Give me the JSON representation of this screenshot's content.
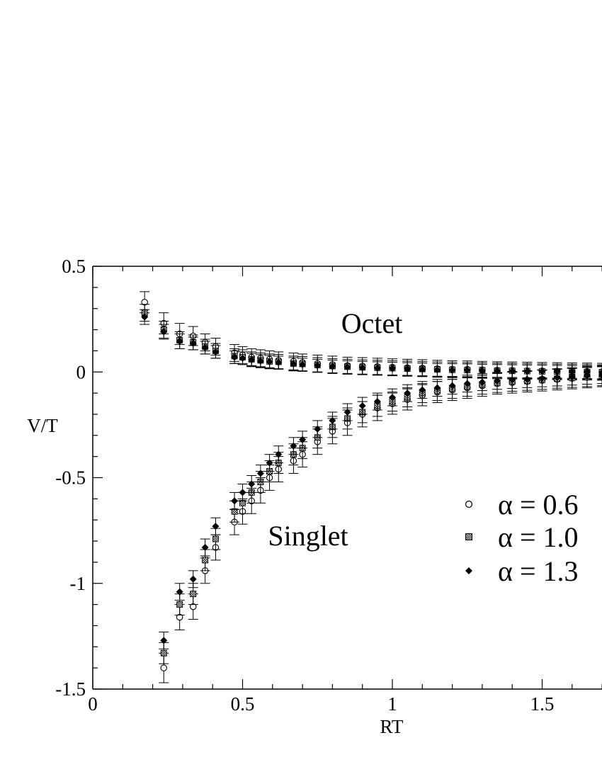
{
  "chart_data": {
    "type": "scatter",
    "title": "",
    "xlabel": "RT",
    "ylabel": "V/T",
    "xlim": [
      0,
      1.7
    ],
    "ylim": [
      -1.5,
      0.5
    ],
    "x_ticks": [
      "0",
      "0.5",
      "1",
      "1.5"
    ],
    "y_ticks": [
      "0.5",
      "0",
      "-0.5",
      "-1",
      "-1.5"
    ],
    "grid": false,
    "error_bars": true,
    "legend": {
      "placement": "right",
      "entries": [
        "α = 0.6",
        "α = 1.0",
        "α = 1.3"
      ]
    },
    "annotations": [
      {
        "text": "Octet",
        "x": 0.97,
        "y": 0.23
      },
      {
        "text": "Singlet",
        "x": 0.73,
        "y": -0.77
      }
    ],
    "series": [
      {
        "name": "α = 0.6",
        "marker": "open-circle",
        "octet": {
          "x": [
            0.173,
            0.237,
            0.29,
            0.335,
            0.375,
            0.41,
            0.473,
            0.5,
            0.53,
            0.56,
            0.59,
            0.62,
            0.67,
            0.7,
            0.75,
            0.8,
            0.85,
            0.9,
            0.95,
            1.0,
            1.05,
            1.1,
            1.15,
            1.2,
            1.25,
            1.3,
            1.35,
            1.4,
            1.45,
            1.5,
            1.55,
            1.6,
            1.65,
            1.7
          ],
          "y": [
            0.33,
            0.23,
            0.18,
            0.17,
            0.14,
            0.12,
            0.09,
            0.08,
            0.07,
            0.065,
            0.06,
            0.055,
            0.05,
            0.045,
            0.04,
            0.035,
            0.03,
            0.028,
            0.025,
            0.022,
            0.02,
            0.018,
            0.015,
            0.013,
            0.012,
            0.01,
            0.008,
            0.007,
            0.006,
            0.005,
            0.004,
            0.003,
            0.002,
            0.001
          ],
          "err": [
            0.05,
            0.05,
            0.05,
            0.045,
            0.04,
            0.04,
            0.04,
            0.04,
            0.04,
            0.04,
            0.04,
            0.04,
            0.04,
            0.04,
            0.04,
            0.04,
            0.04,
            0.04,
            0.04,
            0.04,
            0.04,
            0.04,
            0.04,
            0.04,
            0.04,
            0.04,
            0.04,
            0.04,
            0.04,
            0.04,
            0.04,
            0.04,
            0.04,
            0.04
          ]
        },
        "singlet": {
          "x": [
            0.237,
            0.29,
            0.335,
            0.375,
            0.41,
            0.473,
            0.5,
            0.53,
            0.56,
            0.59,
            0.62,
            0.67,
            0.7,
            0.75,
            0.8,
            0.85,
            0.9,
            0.95,
            1.0,
            1.05,
            1.1,
            1.15,
            1.2,
            1.25,
            1.3,
            1.35,
            1.4,
            1.45,
            1.5,
            1.55,
            1.6,
            1.65,
            1.7
          ],
          "y": [
            -1.4,
            -1.16,
            -1.11,
            -0.94,
            -0.83,
            -0.71,
            -0.66,
            -0.61,
            -0.56,
            -0.5,
            -0.46,
            -0.42,
            -0.39,
            -0.33,
            -0.28,
            -0.24,
            -0.2,
            -0.17,
            -0.15,
            -0.13,
            -0.11,
            -0.095,
            -0.085,
            -0.075,
            -0.065,
            -0.055,
            -0.05,
            -0.045,
            -0.04,
            -0.035,
            -0.03,
            -0.025,
            -0.02
          ],
          "err": [
            0.07,
            0.06,
            0.06,
            0.06,
            0.06,
            0.06,
            0.06,
            0.06,
            0.06,
            0.06,
            0.06,
            0.06,
            0.06,
            0.06,
            0.06,
            0.06,
            0.06,
            0.06,
            0.05,
            0.05,
            0.05,
            0.05,
            0.05,
            0.05,
            0.05,
            0.05,
            0.05,
            0.05,
            0.05,
            0.05,
            0.05,
            0.05,
            0.05
          ]
        }
      },
      {
        "name": "α = 1.0",
        "marker": "hatched-square",
        "octet": {
          "x": [
            0.173,
            0.237,
            0.29,
            0.335,
            0.375,
            0.41,
            0.473,
            0.5,
            0.53,
            0.56,
            0.59,
            0.62,
            0.67,
            0.7,
            0.75,
            0.8,
            0.85,
            0.9,
            0.95,
            1.0,
            1.05,
            1.1,
            1.15,
            1.2,
            1.25,
            1.3,
            1.35,
            1.4,
            1.45,
            1.5,
            1.55,
            1.6,
            1.65,
            1.7
          ],
          "y": [
            0.28,
            0.2,
            0.15,
            0.14,
            0.12,
            0.1,
            0.075,
            0.07,
            0.06,
            0.055,
            0.05,
            0.048,
            0.04,
            0.038,
            0.033,
            0.028,
            0.025,
            0.022,
            0.02,
            0.018,
            0.016,
            0.014,
            0.012,
            0.01,
            0.009,
            0.008,
            0.006,
            0.005,
            0.004,
            0.003,
            0.002,
            0.001,
            0.0,
            -0.001
          ],
          "err": [
            0.04,
            0.04,
            0.04,
            0.035,
            0.035,
            0.035,
            0.035,
            0.035,
            0.035,
            0.035,
            0.035,
            0.035,
            0.035,
            0.035,
            0.035,
            0.035,
            0.035,
            0.035,
            0.035,
            0.035,
            0.035,
            0.035,
            0.035,
            0.035,
            0.035,
            0.035,
            0.035,
            0.035,
            0.035,
            0.035,
            0.035,
            0.035,
            0.035,
            0.035
          ]
        },
        "singlet": {
          "x": [
            0.237,
            0.29,
            0.335,
            0.375,
            0.41,
            0.473,
            0.5,
            0.53,
            0.56,
            0.59,
            0.62,
            0.67,
            0.7,
            0.75,
            0.8,
            0.85,
            0.9,
            0.95,
            1.0,
            1.05,
            1.1,
            1.15,
            1.2,
            1.25,
            1.3,
            1.35,
            1.4,
            1.45,
            1.5,
            1.55,
            1.6,
            1.65,
            1.7
          ],
          "y": [
            -1.33,
            -1.1,
            -1.05,
            -0.89,
            -0.79,
            -0.66,
            -0.62,
            -0.57,
            -0.52,
            -0.47,
            -0.43,
            -0.39,
            -0.36,
            -0.31,
            -0.26,
            -0.22,
            -0.19,
            -0.16,
            -0.14,
            -0.12,
            -0.1,
            -0.09,
            -0.08,
            -0.07,
            -0.06,
            -0.052,
            -0.046,
            -0.042,
            -0.037,
            -0.032,
            -0.028,
            -0.024,
            -0.02
          ],
          "err": [
            0.05,
            0.05,
            0.05,
            0.05,
            0.05,
            0.05,
            0.05,
            0.05,
            0.05,
            0.05,
            0.05,
            0.05,
            0.05,
            0.05,
            0.05,
            0.05,
            0.05,
            0.05,
            0.045,
            0.045,
            0.045,
            0.045,
            0.045,
            0.045,
            0.045,
            0.045,
            0.045,
            0.045,
            0.045,
            0.045,
            0.045,
            0.045,
            0.045
          ]
        }
      },
      {
        "name": "α = 1.3",
        "marker": "filled-diamond",
        "octet": {
          "x": [
            0.173,
            0.237,
            0.29,
            0.335,
            0.375,
            0.41,
            0.473,
            0.5,
            0.53,
            0.56,
            0.59,
            0.62,
            0.67,
            0.7,
            0.75,
            0.8,
            0.85,
            0.9,
            0.95,
            1.0,
            1.05,
            1.1,
            1.15,
            1.2,
            1.25,
            1.3,
            1.35,
            1.4,
            1.45,
            1.5,
            1.55,
            1.6,
            1.65,
            1.7
          ],
          "y": [
            0.26,
            0.19,
            0.145,
            0.135,
            0.115,
            0.095,
            0.07,
            0.065,
            0.058,
            0.052,
            0.048,
            0.045,
            0.038,
            0.035,
            0.03,
            0.026,
            0.023,
            0.02,
            0.018,
            0.016,
            0.014,
            0.012,
            0.01,
            0.009,
            0.008,
            0.006,
            0.005,
            0.004,
            0.003,
            0.002,
            0.001,
            0.0,
            -0.001,
            -0.002
          ],
          "err": [
            0.035,
            0.035,
            0.035,
            0.03,
            0.03,
            0.03,
            0.03,
            0.03,
            0.03,
            0.03,
            0.03,
            0.03,
            0.03,
            0.03,
            0.03,
            0.03,
            0.03,
            0.03,
            0.03,
            0.03,
            0.03,
            0.03,
            0.03,
            0.03,
            0.03,
            0.03,
            0.03,
            0.03,
            0.03,
            0.03,
            0.03,
            0.03,
            0.03,
            0.03
          ]
        },
        "singlet": {
          "x": [
            0.237,
            0.29,
            0.335,
            0.375,
            0.41,
            0.473,
            0.5,
            0.53,
            0.56,
            0.59,
            0.62,
            0.67,
            0.7,
            0.75,
            0.8,
            0.85,
            0.9,
            0.95,
            1.0,
            1.05,
            1.1,
            1.15,
            1.2,
            1.25,
            1.3,
            1.35,
            1.4,
            1.45,
            1.5,
            1.55,
            1.6,
            1.65,
            1.7
          ],
          "y": [
            -1.27,
            -1.04,
            -0.98,
            -0.83,
            -0.73,
            -0.61,
            -0.57,
            -0.53,
            -0.48,
            -0.43,
            -0.39,
            -0.35,
            -0.32,
            -0.27,
            -0.23,
            -0.19,
            -0.16,
            -0.14,
            -0.12,
            -0.1,
            -0.085,
            -0.075,
            -0.065,
            -0.055,
            -0.048,
            -0.042,
            -0.038,
            -0.034,
            -0.03,
            -0.026,
            -0.022,
            -0.018,
            -0.015
          ],
          "err": [
            0.04,
            0.04,
            0.04,
            0.04,
            0.04,
            0.04,
            0.04,
            0.04,
            0.04,
            0.04,
            0.04,
            0.04,
            0.04,
            0.04,
            0.04,
            0.04,
            0.04,
            0.04,
            0.04,
            0.04,
            0.04,
            0.04,
            0.04,
            0.04,
            0.04,
            0.04,
            0.04,
            0.04,
            0.04,
            0.04,
            0.04,
            0.04,
            0.04
          ]
        }
      }
    ]
  }
}
